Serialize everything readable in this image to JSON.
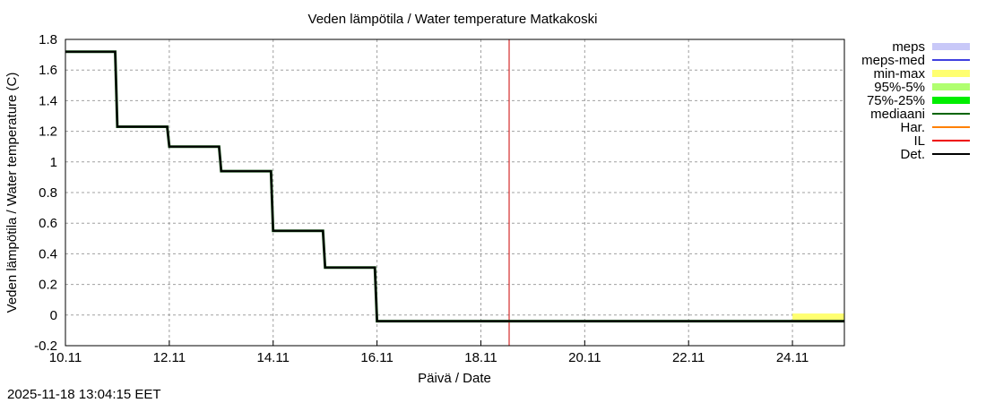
{
  "chart_data": {
    "type": "line",
    "title": "Veden lämpötila / Water temperature Matkakoski",
    "xlabel": "Päivä / Date",
    "ylabel": "Veden lämpötila / Water temperature (C)",
    "ylim": [
      -0.2,
      1.8
    ],
    "xlim_days": [
      0,
      15
    ],
    "x_ticks": [
      "10.11",
      "12.11",
      "14.11",
      "16.11",
      "18.11",
      "20.11",
      "22.11",
      "24.11"
    ],
    "y_ticks": [
      "1.8",
      "1.6",
      "1.4",
      "1.2",
      "1",
      "0.8",
      "0.6",
      "0.4",
      "0.2",
      "0",
      "-0.2"
    ],
    "grid": true,
    "legend_position": "right",
    "legend": [
      {
        "label": "meps",
        "color": "#c8c8f8",
        "style": "band"
      },
      {
        "label": "meps-med",
        "color": "#4040e0",
        "style": "line"
      },
      {
        "label": "min-max",
        "color": "#ffff70",
        "style": "band"
      },
      {
        "label": "95%-5%",
        "color": "#b0ff70",
        "style": "band"
      },
      {
        "label": "75%-25%",
        "color": "#00ee00",
        "style": "band"
      },
      {
        "label": "mediaani",
        "color": "#006400",
        "style": "line"
      },
      {
        "label": "Har.",
        "color": "#ff8000",
        "style": "line"
      },
      {
        "label": "IL",
        "color": "#ee0000",
        "style": "line"
      },
      {
        "label": "Det.",
        "color": "#000000",
        "style": "line"
      }
    ],
    "series": [
      {
        "name": "Det.",
        "x": [
          "10.11 00:00",
          "10.11 23:00",
          "11.11 00:00",
          "11.11 23:00",
          "12.11 00:00",
          "12.11 23:00",
          "13.11 00:00",
          "13.11 23:00",
          "14.11 00:00",
          "14.11 23:00",
          "15.11 00:00",
          "15.11 23:00",
          "16.11 00:00",
          "25.11 00:00"
        ],
        "values": [
          1.72,
          1.72,
          1.23,
          1.23,
          1.1,
          1.1,
          0.94,
          0.94,
          0.55,
          0.55,
          0.31,
          0.31,
          -0.04,
          -0.04
        ]
      },
      {
        "name": "min-max",
        "x": [
          "24.11",
          "25.11"
        ],
        "lower": [
          -0.04,
          -0.04
        ],
        "upper": [
          0.01,
          0.01
        ]
      }
    ],
    "vertical_line": {
      "name": "IL",
      "x": "18.11 13:04",
      "color": "#cc0000"
    }
  },
  "footer": {
    "timestamp": "2025-11-18 13:04:15 EET"
  }
}
